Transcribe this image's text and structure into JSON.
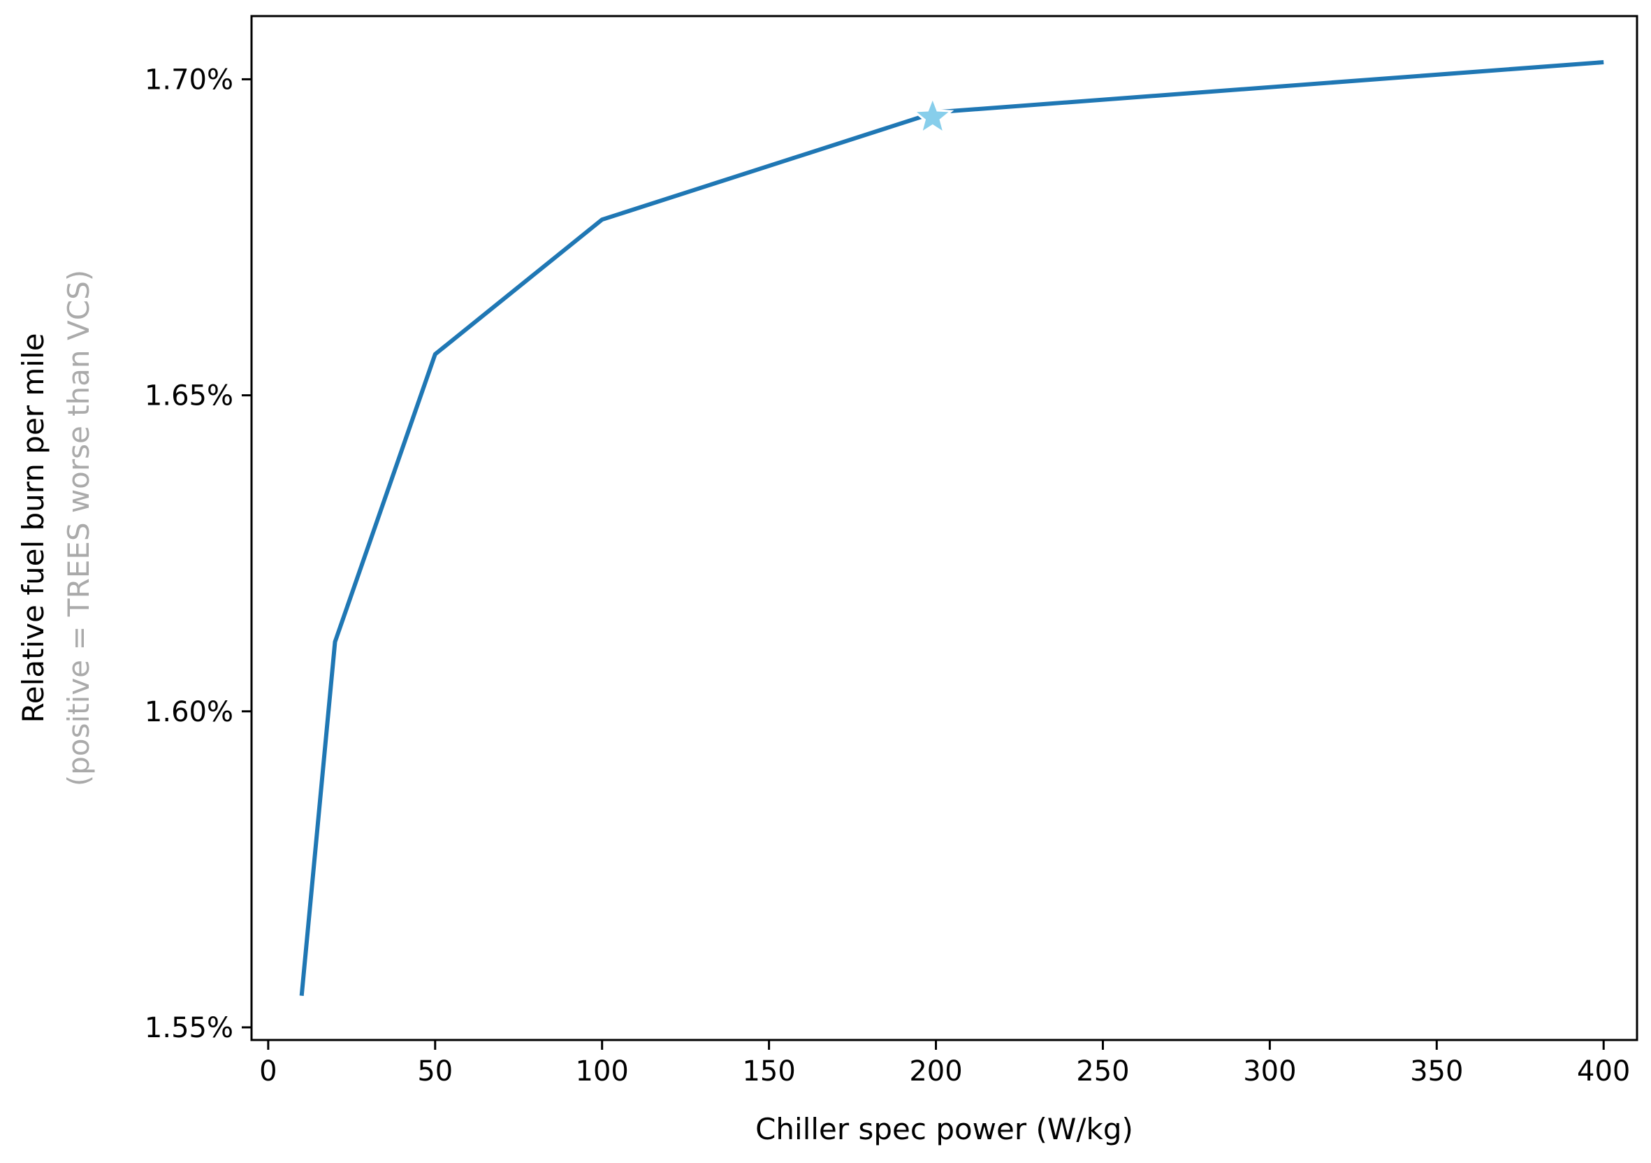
{
  "chart_data": {
    "type": "line",
    "title": "",
    "xlabel": "Chiller spec power (W/kg)",
    "ylabel": "Relative fuel burn per mile",
    "ylabel_note": "(positive = TREES worse than VCS)",
    "xlim": [
      -5,
      410
    ],
    "ylim": [
      1.548,
      1.71
    ],
    "x_ticks": [
      0,
      50,
      100,
      150,
      200,
      250,
      300,
      350,
      400
    ],
    "x_tick_labels": [
      "0",
      "50",
      "100",
      "150",
      "200",
      "250",
      "300",
      "350",
      "400"
    ],
    "y_ticks": [
      1.55,
      1.6,
      1.65,
      1.7
    ],
    "y_tick_labels": [
      "1.55%",
      "1.60%",
      "1.65%",
      "1.70%"
    ],
    "grid": false,
    "legend": "none",
    "series": [
      {
        "color": "#1f77b4",
        "x": [
          10,
          20,
          50,
          100,
          200,
          400
        ],
        "y": [
          1.555,
          1.611,
          1.6565,
          1.6778,
          1.6948,
          1.7027
        ]
      }
    ],
    "highlight_point": {
      "x": 199,
      "y": 1.694,
      "marker": "star",
      "color": "#87ceeb"
    }
  }
}
